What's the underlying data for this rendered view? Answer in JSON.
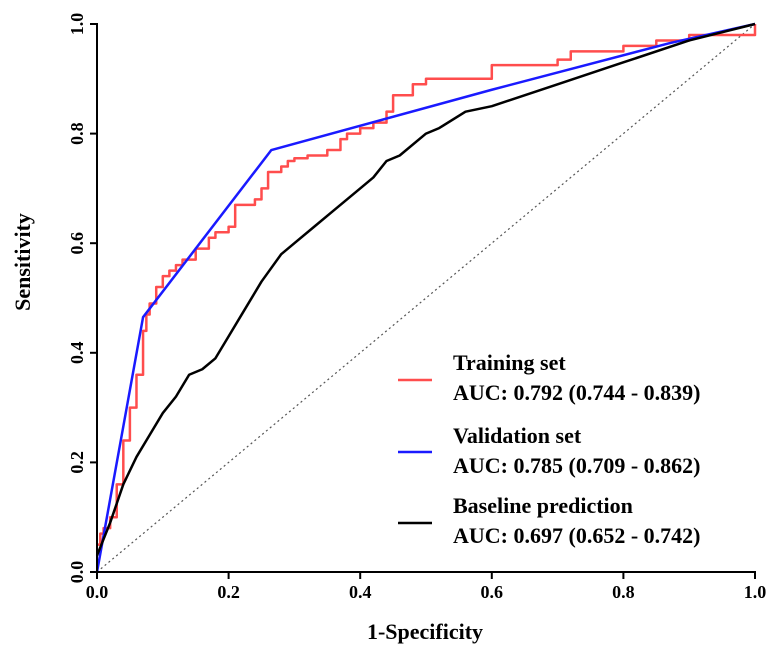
{
  "chart_data": {
    "type": "line",
    "xlabel": "1-Specificity",
    "ylabel": "Sensitivity",
    "xlim": [
      0,
      1
    ],
    "ylim": [
      0,
      1
    ],
    "grid": false,
    "legend_position": "bottom-right",
    "x_ticks": [
      "0.0",
      "0.2",
      "0.4",
      "0.6",
      "0.8",
      "1.0"
    ],
    "y_ticks": [
      "0.0",
      "0.2",
      "0.4",
      "0.6",
      "0.8",
      "1.0"
    ],
    "reference_line": {
      "x": [
        0,
        1
      ],
      "y": [
        0,
        1
      ],
      "style": "dotted",
      "color": "#555555"
    },
    "series": [
      {
        "name": "Training set",
        "auc_label": "AUC: 0.792 (0.744 - 0.839)",
        "color": "#ff4d4d",
        "step": true,
        "x": [
          0,
          0.005,
          0.01,
          0.02,
          0.03,
          0.04,
          0.05,
          0.06,
          0.07,
          0.075,
          0.08,
          0.09,
          0.1,
          0.11,
          0.12,
          0.13,
          0.15,
          0.17,
          0.18,
          0.2,
          0.21,
          0.22,
          0.24,
          0.25,
          0.26,
          0.27,
          0.28,
          0.29,
          0.3,
          0.32,
          0.35,
          0.37,
          0.38,
          0.4,
          0.42,
          0.44,
          0.45,
          0.48,
          0.5,
          0.55,
          0.6,
          0.62,
          0.7,
          0.72,
          0.8,
          0.85,
          0.9,
          0.98,
          1.0
        ],
        "y": [
          0.05,
          0.07,
          0.08,
          0.1,
          0.16,
          0.24,
          0.3,
          0.36,
          0.44,
          0.47,
          0.49,
          0.52,
          0.54,
          0.55,
          0.56,
          0.57,
          0.59,
          0.61,
          0.62,
          0.63,
          0.67,
          0.67,
          0.68,
          0.7,
          0.73,
          0.73,
          0.74,
          0.75,
          0.755,
          0.76,
          0.77,
          0.79,
          0.8,
          0.81,
          0.82,
          0.84,
          0.87,
          0.89,
          0.9,
          0.9,
          0.925,
          0.925,
          0.935,
          0.95,
          0.96,
          0.97,
          0.98,
          0.98,
          1.0
        ]
      },
      {
        "name": "Validation set",
        "auc_label": "AUC: 0.785 (0.709 - 0.862)",
        "color": "#1a1aff",
        "step": false,
        "x": [
          0,
          0.07,
          0.265,
          0.6,
          0.87,
          1.0
        ],
        "y": [
          0,
          0.465,
          0.77,
          0.88,
          0.965,
          1.0
        ]
      },
      {
        "name": "Baseline prediction",
        "auc_label": "AUC: 0.697 (0.652 - 0.742)",
        "color": "#000000",
        "step": false,
        "x": [
          0,
          0.02,
          0.04,
          0.06,
          0.08,
          0.1,
          0.12,
          0.14,
          0.16,
          0.18,
          0.2,
          0.22,
          0.25,
          0.28,
          0.3,
          0.33,
          0.36,
          0.4,
          0.42,
          0.44,
          0.46,
          0.5,
          0.52,
          0.56,
          0.6,
          0.7,
          0.8,
          0.9,
          1.0
        ],
        "y": [
          0.03,
          0.09,
          0.16,
          0.21,
          0.25,
          0.29,
          0.32,
          0.36,
          0.37,
          0.39,
          0.43,
          0.47,
          0.53,
          0.58,
          0.6,
          0.63,
          0.66,
          0.7,
          0.72,
          0.75,
          0.76,
          0.8,
          0.81,
          0.84,
          0.85,
          0.89,
          0.93,
          0.97,
          1.0
        ]
      }
    ]
  }
}
